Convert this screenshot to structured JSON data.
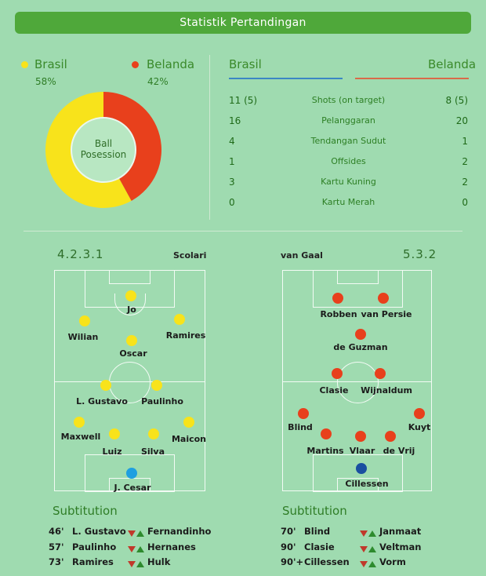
{
  "header": {
    "title": "Statistik Pertandingan"
  },
  "teams": {
    "home": {
      "name": "Brasil",
      "possession_pct": "58%",
      "possession_value": 58,
      "color": "#f8e31b"
    },
    "away": {
      "name": "Belanda",
      "possession_pct": "42%",
      "possession_value": 42,
      "color": "#e8401c"
    }
  },
  "donut_label": "Ball Posession",
  "stats_header": {
    "home": "Brasil",
    "away": "Belanda"
  },
  "stats": [
    {
      "home": "11 (5)",
      "label": "Shots (on target)",
      "away": "8 (5)"
    },
    {
      "home": "16",
      "label": "Pelanggaran",
      "away": "20"
    },
    {
      "home": "4",
      "label": "Tendangan Sudut",
      "away": "1"
    },
    {
      "home": "1",
      "label": "Offsides",
      "away": "2"
    },
    {
      "home": "3",
      "label": "Kartu Kuning",
      "away": "2"
    },
    {
      "home": "0",
      "label": "Kartu Merah",
      "away": "0"
    }
  ],
  "lineups": {
    "home": {
      "formation": "4.2.3.1",
      "coach": "Scolari",
      "players": [
        "Jo",
        "Wilian",
        "Ramires",
        "Oscar",
        "L. Gustavo",
        "Paulinho",
        "Maxwell",
        "Maicon",
        "Luiz",
        "Silva",
        "J. Cesar"
      ]
    },
    "away": {
      "formation": "5.3.2",
      "coach": "van Gaal",
      "players": [
        "Robben",
        "van Persie",
        "de Guzman",
        "Clasie",
        "Wijnaldum",
        "Blind",
        "Kuyt",
        "Martins",
        "Vlaar",
        "de Vrij",
        "Cillessen"
      ]
    }
  },
  "substitutions": {
    "title": "Subtitution",
    "home": [
      {
        "minute": "46'",
        "out": "L. Gustavo",
        "in": "Fernandinho"
      },
      {
        "minute": "57'",
        "out": "Paulinho",
        "in": "Hernanes"
      },
      {
        "minute": "73'",
        "out": "Ramires",
        "in": "Hulk"
      }
    ],
    "away": [
      {
        "minute": "70'",
        "out": "Blind",
        "in": "Janmaat"
      },
      {
        "minute": "90'",
        "out": "Clasie",
        "in": "Veltman"
      },
      {
        "minute": "90'+",
        "out": "Cillessen",
        "in": "Vorm"
      }
    ]
  },
  "colors": {
    "home_player": "#f8e31b",
    "home_gk": "#1e9fe0",
    "away_player": "#e8401c",
    "away_gk": "#1a4fa0",
    "accent": "#4fa83a"
  }
}
